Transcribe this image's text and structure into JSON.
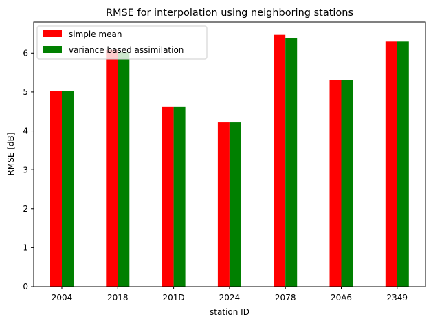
{
  "chart_data": {
    "type": "bar",
    "title": "RMSE for interpolation using neighboring stations",
    "xlabel": "station ID",
    "ylabel": "RMSE [dB]",
    "categories": [
      "2004",
      "2018",
      "201D",
      "2024",
      "2078",
      "20A6",
      "2349"
    ],
    "series": [
      {
        "name": "simple mean",
        "color": "#ff0000",
        "values": [
          5.02,
          6.08,
          4.63,
          4.22,
          6.47,
          5.3,
          6.3
        ]
      },
      {
        "name": "variance based assimilation",
        "color": "#008000",
        "values": [
          5.02,
          6.03,
          4.63,
          4.22,
          6.38,
          5.3,
          6.3
        ]
      }
    ],
    "ylim": [
      0,
      6.8
    ],
    "yticks": [
      0,
      1,
      2,
      3,
      4,
      5,
      6
    ],
    "grid": false,
    "legend_position": "top-left"
  }
}
